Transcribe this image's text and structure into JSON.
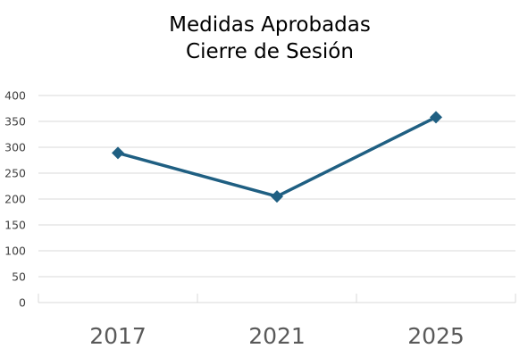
{
  "chart_data": {
    "type": "line",
    "title_lines": [
      "Medidas Aprobadas",
      "Cierre de Sesión"
    ],
    "xlabel": "",
    "ylabel": "",
    "categories": [
      "2017",
      "2021",
      "2025"
    ],
    "series": [
      {
        "values": [
          289,
          205,
          358
        ],
        "color": "#1f5f82",
        "marker": "diamond"
      }
    ],
    "ylim": [
      0,
      400
    ],
    "yticks": [
      0,
      50,
      100,
      150,
      200,
      250,
      300,
      350,
      400
    ],
    "grid": true,
    "legend": "none"
  }
}
